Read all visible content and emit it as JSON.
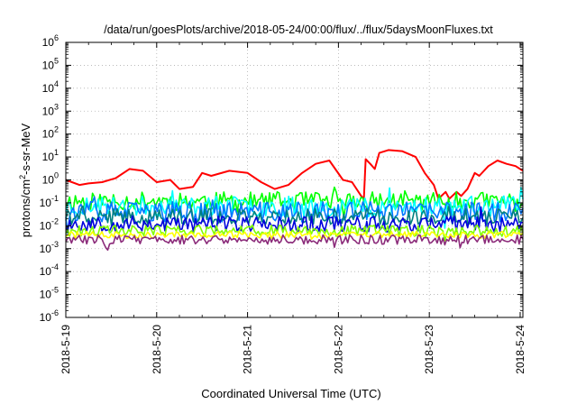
{
  "chart_data": {
    "type": "line",
    "title": "/data/run/goesPlots/archive/2018-05-24/00:00/flux/../flux/5daysMoonFluxes.txt",
    "xlabel": "Coordinated Universal Time (UTC)",
    "ylabel_parts": [
      "protons/cm",
      "2",
      "-s-sr-MeV"
    ],
    "y_scale": "log",
    "ylim": [
      1e-06,
      1000000.0
    ],
    "xlim": [
      0,
      5.03
    ],
    "grid": true,
    "x_ticks": [
      {
        "value": 0,
        "label": "2018-5-19"
      },
      {
        "value": 1,
        "label": "2018-5-20"
      },
      {
        "value": 2,
        "label": "2018-5-21"
      },
      {
        "value": 3,
        "label": "2018-5-22"
      },
      {
        "value": 4,
        "label": "2018-5-23"
      },
      {
        "value": 5,
        "label": "2018-5-24"
      }
    ],
    "y_ticks": [
      {
        "exp": -6,
        "base": "10",
        "sup": "-6"
      },
      {
        "exp": -5,
        "base": "10",
        "sup": "-5"
      },
      {
        "exp": -4,
        "base": "10",
        "sup": "-4"
      },
      {
        "exp": -3,
        "base": "10",
        "sup": "-3"
      },
      {
        "exp": -2,
        "base": "10",
        "sup": "-2"
      },
      {
        "exp": -1,
        "base": "10",
        "sup": "-1"
      },
      {
        "exp": 0,
        "base": "10",
        "sup": "0"
      },
      {
        "exp": 1,
        "base": "10",
        "sup": "1"
      },
      {
        "exp": 2,
        "base": "10",
        "sup": "2"
      },
      {
        "exp": 3,
        "base": "10",
        "sup": "3"
      },
      {
        "exp": 4,
        "base": "10",
        "sup": "4"
      },
      {
        "exp": 5,
        "base": "10",
        "sup": "5"
      },
      {
        "exp": 6,
        "base": "10",
        "sup": "6"
      }
    ],
    "series": [
      {
        "color": "#ff0000",
        "x": [
          0.0,
          0.15,
          0.25,
          0.4,
          0.55,
          0.7,
          0.85,
          1.0,
          1.15,
          1.25,
          1.4,
          1.5,
          1.6,
          1.8,
          2.0,
          2.15,
          2.3,
          2.45,
          2.6,
          2.75,
          2.9,
          3.05,
          3.15,
          3.25,
          3.28,
          3.3,
          3.35,
          3.4,
          3.45,
          3.55,
          3.7,
          3.85,
          3.95,
          4.05,
          4.1,
          4.18,
          4.22,
          4.3,
          4.35,
          4.42,
          4.5,
          4.55,
          4.65,
          4.75,
          4.85,
          4.95,
          5.03
        ],
        "y": [
          1.0,
          0.6,
          0.7,
          0.8,
          1.2,
          3.0,
          2.5,
          0.8,
          1.0,
          0.4,
          0.5,
          2.0,
          1.5,
          2.5,
          2.0,
          0.8,
          0.4,
          0.6,
          2.0,
          5.0,
          7.0,
          1.0,
          0.8,
          0.2,
          0.15,
          8.0,
          5.0,
          3.0,
          15,
          20,
          18,
          10,
          2.0,
          0.6,
          0.15,
          0.3,
          0.15,
          0.3,
          0.2,
          0.4,
          2.0,
          1.5,
          4.0,
          7.0,
          5.0,
          4.0,
          2.5
        ]
      },
      {
        "color": "#00ff00",
        "base": 0.12,
        "amp": 0.4,
        "seed": 11
      },
      {
        "color": "#00ffff",
        "base": 0.07,
        "amp": 0.45,
        "seed": 23
      },
      {
        "color": "#0077ff",
        "base": 0.04,
        "amp": 0.45,
        "seed": 37
      },
      {
        "color": "#008080",
        "base": 0.025,
        "amp": 0.35,
        "seed": 41
      },
      {
        "color": "#0000dd",
        "base": 0.012,
        "amp": 0.35,
        "seed": 53
      },
      {
        "color": "#7fff00",
        "base": 0.006,
        "amp": 0.25,
        "seed": 61
      },
      {
        "color": "#ffff00",
        "base": 0.004,
        "amp": 0.15,
        "seed": 71
      },
      {
        "color": "#8b2b7a",
        "base": 0.0025,
        "amp": 0.2,
        "seed": 83
      }
    ]
  }
}
